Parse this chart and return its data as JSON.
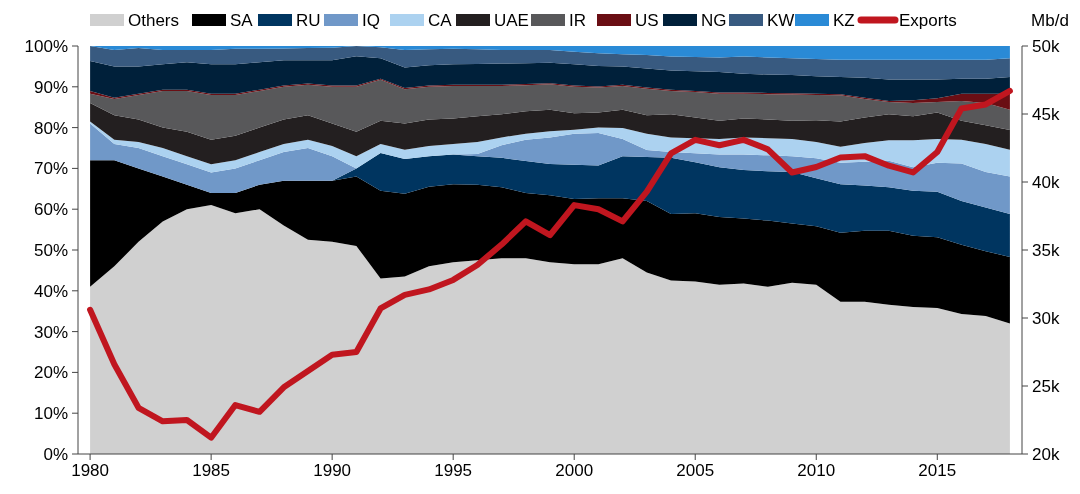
{
  "chart_data": {
    "type": "area",
    "stacked": true,
    "legend": "top",
    "grid": false,
    "x": [
      1980,
      1981,
      1982,
      1983,
      1984,
      1985,
      1986,
      1987,
      1988,
      1989,
      1990,
      1991,
      1992,
      1993,
      1994,
      1995,
      1996,
      1997,
      1998,
      1999,
      2000,
      2001,
      2002,
      2003,
      2004,
      2005,
      2006,
      2007,
      2008,
      2009,
      2010,
      2011,
      2012,
      2013,
      2014,
      2015,
      2016,
      2017,
      2018
    ],
    "xlim": [
      1979.5,
      2018.5
    ],
    "xticks": [
      1980,
      1985,
      1990,
      1995,
      2000,
      2005,
      2010,
      2015
    ],
    "ylim": [
      0,
      100
    ],
    "yticks": [
      {
        "value": 0,
        "label": "0%"
      },
      {
        "value": 10,
        "label": "10%"
      },
      {
        "value": 20,
        "label": "20%"
      },
      {
        "value": 30,
        "label": "30%"
      },
      {
        "value": 40,
        "label": "40%"
      },
      {
        "value": 50,
        "label": "50%"
      },
      {
        "value": 60,
        "label": "60%"
      },
      {
        "value": 70,
        "label": "70%"
      },
      {
        "value": 80,
        "label": "80%"
      },
      {
        "value": 90,
        "label": "90%"
      },
      {
        "value": 100,
        "label": "100%"
      }
    ],
    "y2lim": [
      20,
      50
    ],
    "y2ticks": [
      {
        "value": 20,
        "label": "20k"
      },
      {
        "value": 25,
        "label": "25k"
      },
      {
        "value": 30,
        "label": "30k"
      },
      {
        "value": 35,
        "label": "35k"
      },
      {
        "value": 40,
        "label": "40k"
      },
      {
        "value": 45,
        "label": "45k"
      },
      {
        "value": 50,
        "label": "50k"
      }
    ],
    "annotations": [
      "Mb/d"
    ],
    "series": [
      {
        "name": "Others",
        "color": "#d0d0d0",
        "values": [
          41,
          46,
          52,
          57,
          60,
          61,
          59,
          60,
          56,
          52.5,
          52,
          51,
          43,
          43.5,
          46,
          47,
          47.5,
          48,
          48,
          47,
          46.5,
          46.5,
          48,
          44.5,
          42.5,
          42.3,
          41.5,
          41.8,
          41,
          42,
          41.5,
          37.3,
          37.3,
          36.6,
          36,
          35.8,
          34.3,
          33.8,
          32
        ]
      },
      {
        "name": "SA",
        "color": "#000000",
        "values": [
          31,
          26,
          18,
          11,
          6,
          3,
          5,
          6,
          11,
          14.5,
          15,
          17,
          21.5,
          20.3,
          19.5,
          19.1,
          18.5,
          17.4,
          16,
          16.4,
          16,
          16.2,
          14.7,
          17.5,
          16.3,
          16.7,
          16.6,
          15.9,
          16.2,
          14.5,
          14.3,
          16.9,
          17.4,
          18.1,
          17.5,
          17.3,
          17,
          15.9,
          16.3
        ]
      },
      {
        "name": "RU",
        "color": "#003560",
        "values": [
          0,
          0,
          0,
          0,
          0,
          0,
          0,
          0,
          0,
          0,
          0,
          2,
          9.3,
          8.5,
          7.5,
          7.3,
          7,
          7.2,
          7.8,
          7.7,
          8.4,
          8,
          10.3,
          10.8,
          13.8,
          12.5,
          12.2,
          11.9,
          12.1,
          12.6,
          11.8,
          11.9,
          11.1,
          10.7,
          11,
          11.2,
          10.7,
          10.7,
          10.5
        ]
      },
      {
        "name": "IQ",
        "color": "#7098c8",
        "values": [
          9,
          4,
          5,
          5,
          5,
          5,
          6,
          6,
          7,
          8,
          6,
          0,
          0,
          0,
          0,
          0,
          0.5,
          3.1,
          5.2,
          6.5,
          7.6,
          8,
          4.2,
          1.7,
          1.4,
          2.2,
          3.1,
          3.8,
          3.9,
          3.9,
          4.9,
          5.3,
          5.8,
          6.5,
          5.8,
          7.1,
          9.2,
          8.7,
          9.2
        ]
      },
      {
        "name": "CA",
        "color": "#acd2f0",
        "values": [
          0.5,
          1,
          1.5,
          2,
          2,
          2,
          2,
          2,
          2,
          2,
          2.5,
          3,
          2.2,
          2.3,
          2.5,
          2.6,
          3,
          1.9,
          1.5,
          1.5,
          1,
          1.3,
          2.7,
          4,
          3.6,
          3.7,
          3.8,
          4.2,
          4.2,
          4.2,
          4,
          3.9,
          4.6,
          5,
          6.6,
          5.8,
          5.8,
          6.9,
          6.6
        ]
      },
      {
        "name": "UAE",
        "color": "#231f20",
        "values": [
          4.5,
          6,
          5.5,
          5,
          6,
          6,
          6,
          6,
          6,
          6,
          5.5,
          6,
          5.7,
          6.4,
          6.5,
          6.2,
          6.3,
          5.7,
          5.5,
          5.3,
          4,
          3.7,
          4.5,
          4.5,
          5.7,
          5.1,
          4.5,
          4.6,
          4.6,
          4.5,
          5.3,
          6.2,
          6.3,
          6.4,
          5.9,
          6.5,
          4.7,
          4.6,
          4.8
        ]
      },
      {
        "name": "IR",
        "color": "#58585a",
        "values": [
          2.3,
          4,
          6,
          9,
          10,
          11,
          10,
          9,
          8,
          7.5,
          9,
          11,
          10,
          8.4,
          8,
          8,
          7.4,
          6.9,
          6.4,
          6.2,
          6.5,
          6.1,
          5.8,
          6.5,
          5.7,
          6.2,
          6.6,
          6.1,
          6.2,
          6.4,
          6.2,
          6.4,
          4.5,
          3,
          3.2,
          2.6,
          4.8,
          5.4,
          5
        ]
      },
      {
        "name": "US",
        "color": "#6a0e14",
        "values": [
          0.7,
          0.3,
          0.3,
          0.3,
          0.3,
          0.3,
          0.3,
          0.3,
          0.3,
          0.3,
          0.3,
          0.3,
          0.3,
          0.3,
          0.3,
          0.3,
          0.3,
          0.3,
          0.3,
          0.3,
          0.3,
          0.3,
          0.3,
          0.3,
          0.3,
          0.3,
          0.3,
          0.3,
          0.3,
          0.3,
          0.3,
          0.3,
          0.3,
          0.2,
          0.7,
          0.9,
          1.8,
          2.3,
          3.9
        ]
      },
      {
        "name": "NG",
        "color": "#00203a",
        "values": [
          7.3,
          7.7,
          6.7,
          6.2,
          6.7,
          7.2,
          7.2,
          6.7,
          6.2,
          5.7,
          6.2,
          7.2,
          5,
          5,
          5,
          5,
          5.1,
          5.2,
          5.1,
          5,
          5.2,
          5,
          4.5,
          4.7,
          4.7,
          4.8,
          5,
          4.6,
          4.5,
          4.5,
          4.3,
          4.2,
          4.9,
          5.3,
          5.1,
          4.6,
          3.7,
          3.7,
          4.1
        ]
      },
      {
        "name": "KW",
        "color": "#385a80",
        "values": [
          3.7,
          4,
          4.5,
          3.5,
          3,
          3.5,
          3.8,
          3.3,
          2.9,
          3,
          3.1,
          2.5,
          2.7,
          4.3,
          3.9,
          3.8,
          3.6,
          3.3,
          3.2,
          3.1,
          3.1,
          3.1,
          3,
          3.3,
          3.4,
          3.5,
          3.6,
          4.2,
          4.2,
          4.1,
          4.2,
          4.2,
          4.4,
          4.8,
          4.8,
          4.8,
          4.6,
          4.6,
          4.6
        ]
      },
      {
        "name": "KZ",
        "color": "#2a8ad6",
        "values": [
          0,
          1,
          0.5,
          1,
          1,
          1,
          0.7,
          0.7,
          0.6,
          0.5,
          0.4,
          0,
          0.3,
          1,
          0.8,
          0.7,
          0.8,
          1,
          1,
          1,
          1.4,
          1.8,
          2,
          2.2,
          2.6,
          2.7,
          2.8,
          2.6,
          2.8,
          3,
          3.2,
          3.4,
          3.4,
          3.4,
          3.4,
          3.4,
          3.4,
          3.4,
          3
        ]
      },
      {
        "name": "Exports",
        "type": "line",
        "axis": "y2",
        "color": "#c0161f",
        "values": [
          30.6,
          26.6,
          23.4,
          22.4,
          22.5,
          21.2,
          23.6,
          23.1,
          24.9,
          26.1,
          27.3,
          27.5,
          30.7,
          31.7,
          32.1,
          32.8,
          33.9,
          35.4,
          37.1,
          36.1,
          38.3,
          38,
          37.1,
          39.3,
          42.1,
          43.1,
          42.7,
          43.1,
          42.4,
          40.7,
          41.1,
          41.8,
          41.9,
          41.2,
          40.7,
          42.2,
          45.4,
          45.7,
          46.7
        ]
      }
    ]
  }
}
